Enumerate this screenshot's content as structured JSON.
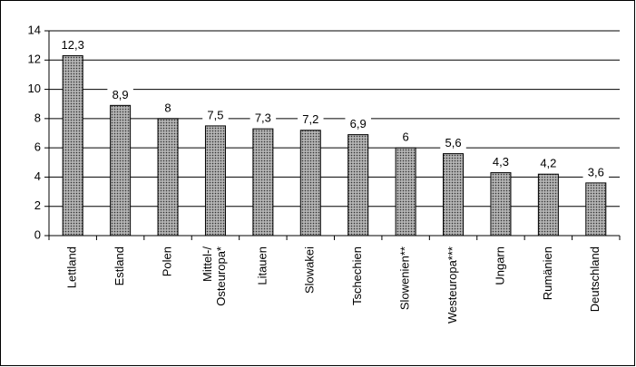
{
  "chart_data": {
    "type": "bar",
    "categories": [
      "Lettland",
      "Estland",
      "Polen",
      "Mittel-/\nOsteuropa*",
      "Litauen",
      "Slowakei",
      "Tschechien",
      "Slowenien**",
      "Westeuropa***",
      "Ungarn",
      "Rumänien",
      "Deutschland"
    ],
    "values": [
      12.3,
      8.9,
      8,
      7.5,
      7.3,
      7.2,
      6.9,
      6,
      5.6,
      4.3,
      4.2,
      3.6
    ],
    "value_labels": [
      "12,3",
      "8,9",
      "8",
      "7,5",
      "7,3",
      "7,2",
      "6,9",
      "6",
      "5,6",
      "4,3",
      "4,2",
      "3,6"
    ],
    "color": "#9a9a9a",
    "ylim": [
      0,
      14
    ],
    "yticks": [
      0,
      2,
      4,
      6,
      8,
      10,
      12,
      14
    ],
    "grid": true
  }
}
